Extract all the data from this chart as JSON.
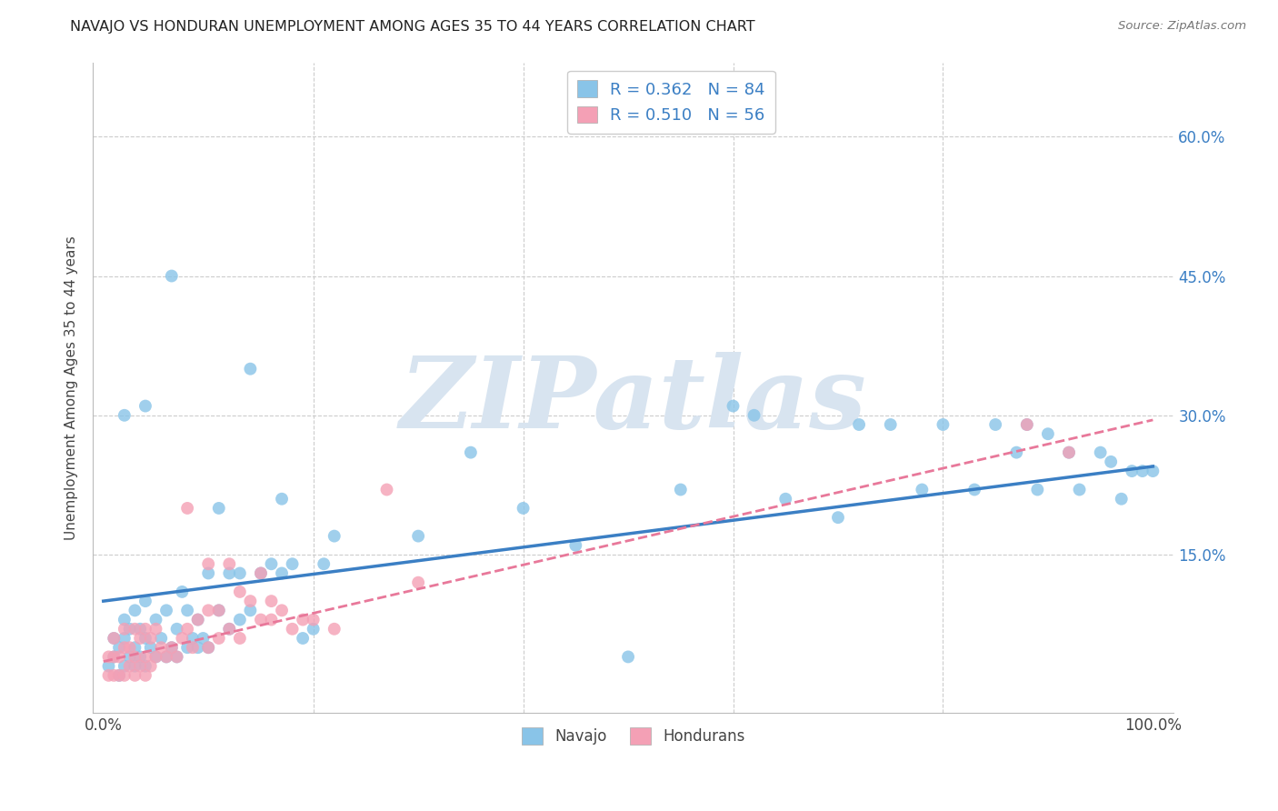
{
  "title": "NAVAJO VS HONDURAN UNEMPLOYMENT AMONG AGES 35 TO 44 YEARS CORRELATION CHART",
  "source": "Source: ZipAtlas.com",
  "ylabel": "Unemployment Among Ages 35 to 44 years",
  "xlim": [
    -0.01,
    1.02
  ],
  "ylim": [
    -0.02,
    0.68
  ],
  "ytick_vals": [
    0.15,
    0.3,
    0.45,
    0.6
  ],
  "ytick_labels": [
    "15.0%",
    "30.0%",
    "45.0%",
    "60.0%"
  ],
  "xtick_vals": [
    0.0,
    1.0
  ],
  "xtick_labels": [
    "0.0%",
    "100.0%"
  ],
  "navajo_R": 0.362,
  "navajo_N": 84,
  "honduran_R": 0.51,
  "honduran_N": 56,
  "navajo_color": "#89C4E8",
  "honduran_color": "#F4A0B5",
  "navajo_line_color": "#3B7FC4",
  "honduran_line_color": "#E8789A",
  "watermark": "ZIPatlas",
  "watermark_color": "#D8E4F0",
  "background_color": "#FFFFFF",
  "grid_color": "#CCCCCC",
  "navajo_x": [
    0.005,
    0.01,
    0.01,
    0.015,
    0.015,
    0.02,
    0.02,
    0.02,
    0.025,
    0.025,
    0.03,
    0.03,
    0.03,
    0.035,
    0.035,
    0.04,
    0.04,
    0.04,
    0.045,
    0.05,
    0.05,
    0.055,
    0.06,
    0.06,
    0.065,
    0.07,
    0.07,
    0.075,
    0.08,
    0.08,
    0.085,
    0.09,
    0.09,
    0.095,
    0.1,
    0.1,
    0.11,
    0.11,
    0.12,
    0.12,
    0.13,
    0.13,
    0.14,
    0.15,
    0.16,
    0.17,
    0.17,
    0.18,
    0.19,
    0.2,
    0.21,
    0.22,
    0.3,
    0.35,
    0.4,
    0.45,
    0.5,
    0.55,
    0.6,
    0.62,
    0.65,
    0.7,
    0.72,
    0.75,
    0.78,
    0.8,
    0.83,
    0.85,
    0.87,
    0.88,
    0.89,
    0.9,
    0.92,
    0.93,
    0.95,
    0.96,
    0.97,
    0.98,
    0.99,
    1.0,
    0.14,
    0.065,
    0.04,
    0.02
  ],
  "navajo_y": [
    0.03,
    0.04,
    0.06,
    0.02,
    0.05,
    0.03,
    0.06,
    0.08,
    0.04,
    0.07,
    0.03,
    0.05,
    0.09,
    0.04,
    0.07,
    0.03,
    0.06,
    0.1,
    0.05,
    0.04,
    0.08,
    0.06,
    0.04,
    0.09,
    0.05,
    0.04,
    0.07,
    0.11,
    0.05,
    0.09,
    0.06,
    0.05,
    0.08,
    0.06,
    0.05,
    0.13,
    0.09,
    0.2,
    0.07,
    0.13,
    0.08,
    0.13,
    0.09,
    0.13,
    0.14,
    0.13,
    0.21,
    0.14,
    0.06,
    0.07,
    0.14,
    0.17,
    0.17,
    0.26,
    0.2,
    0.16,
    0.04,
    0.22,
    0.31,
    0.3,
    0.21,
    0.19,
    0.29,
    0.29,
    0.22,
    0.29,
    0.22,
    0.29,
    0.26,
    0.29,
    0.22,
    0.28,
    0.26,
    0.22,
    0.26,
    0.25,
    0.21,
    0.24,
    0.24,
    0.24,
    0.35,
    0.45,
    0.31,
    0.3
  ],
  "honduran_x": [
    0.005,
    0.005,
    0.01,
    0.01,
    0.01,
    0.015,
    0.015,
    0.02,
    0.02,
    0.02,
    0.025,
    0.025,
    0.03,
    0.03,
    0.03,
    0.035,
    0.035,
    0.04,
    0.04,
    0.04,
    0.045,
    0.045,
    0.05,
    0.05,
    0.055,
    0.06,
    0.065,
    0.07,
    0.075,
    0.08,
    0.08,
    0.085,
    0.09,
    0.1,
    0.1,
    0.1,
    0.11,
    0.11,
    0.12,
    0.12,
    0.13,
    0.13,
    0.14,
    0.15,
    0.15,
    0.16,
    0.16,
    0.17,
    0.18,
    0.19,
    0.2,
    0.22,
    0.27,
    0.3,
    0.88,
    0.92
  ],
  "honduran_y": [
    0.02,
    0.04,
    0.02,
    0.04,
    0.06,
    0.02,
    0.04,
    0.02,
    0.05,
    0.07,
    0.03,
    0.05,
    0.02,
    0.04,
    0.07,
    0.03,
    0.06,
    0.02,
    0.04,
    0.07,
    0.03,
    0.06,
    0.04,
    0.07,
    0.05,
    0.04,
    0.05,
    0.04,
    0.06,
    0.07,
    0.2,
    0.05,
    0.08,
    0.05,
    0.09,
    0.14,
    0.06,
    0.09,
    0.07,
    0.14,
    0.06,
    0.11,
    0.1,
    0.08,
    0.13,
    0.08,
    0.1,
    0.09,
    0.07,
    0.08,
    0.08,
    0.07,
    0.22,
    0.12,
    0.29,
    0.26
  ],
  "navajo_line_x0": 0.0,
  "navajo_line_y0": 0.1,
  "navajo_line_x1": 1.0,
  "navajo_line_y1": 0.245,
  "honduran_line_x0": 0.0,
  "honduran_line_y0": 0.035,
  "honduran_line_x1": 1.0,
  "honduran_line_y1": 0.295
}
